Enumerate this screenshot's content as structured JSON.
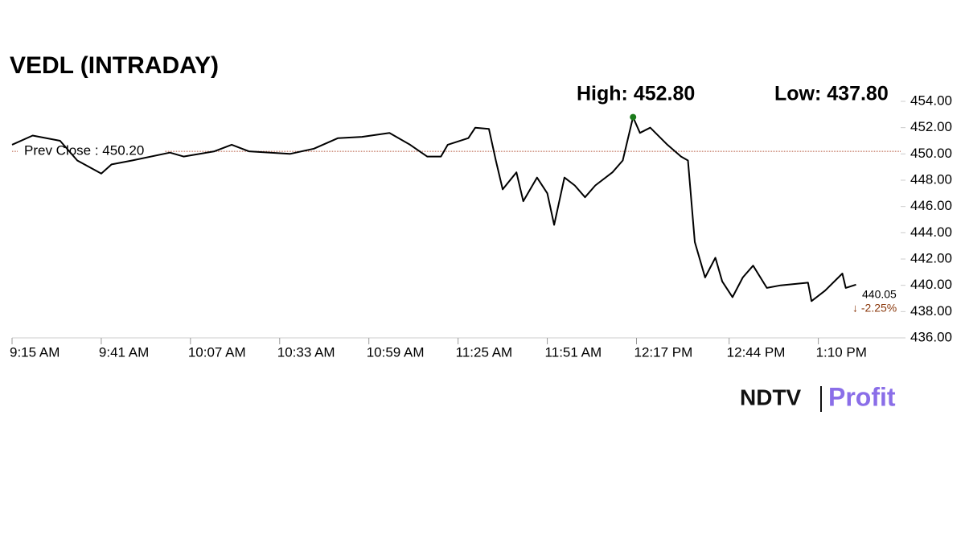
{
  "chart_data": {
    "type": "line",
    "title": "VEDL (INTRADAY)",
    "high_label": "High: 452.80",
    "low_label": "Low: 437.80",
    "prev_close": {
      "value": 450.2,
      "label": "Prev Close : 450.20"
    },
    "last_label": "440.05",
    "change_label": "↓ -2.25%",
    "brand": [
      "NDTV",
      "Profit"
    ],
    "x": [
      "9:15 AM",
      "9:21 AM",
      "9:29 AM",
      "9:34 AM",
      "9:41 AM",
      "9:44 AM",
      "9:50 AM",
      "10:01 AM",
      "10:05 AM",
      "10:14 AM",
      "10:19 AM",
      "10:24 AM",
      "10:36 AM",
      "10:43 AM",
      "10:50 AM",
      "10:57 AM",
      "11:05 AM",
      "11:11 AM",
      "11:16 AM",
      "11:20 AM",
      "11:22 AM",
      "11:28 AM",
      "11:30 AM",
      "11:34 AM",
      "11:36 AM",
      "11:38 AM",
      "11:42 AM",
      "11:44 AM",
      "11:48 AM",
      "11:51 AM",
      "11:53 AM",
      "11:56 AM",
      "11:59 AM",
      "12:02 PM",
      "12:05 PM",
      "12:10 PM",
      "12:13 PM",
      "12:16 PM",
      "12:18 PM",
      "12:21 PM",
      "12:26 PM",
      "12:30 PM",
      "12:32 PM",
      "12:34 PM",
      "12:37 PM",
      "12:40 PM",
      "12:42 PM",
      "12:45 PM",
      "12:48 PM",
      "12:51 PM",
      "12:55 PM",
      "12:59 PM",
      "1:07 PM",
      "1:08 PM",
      "1:12 PM",
      "1:17 PM",
      "1:18 PM",
      "1:21 PM"
    ],
    "series": [
      {
        "name": "VEDL",
        "color": "#000000",
        "values": [
          450.7,
          451.4,
          451.0,
          449.5,
          448.5,
          449.2,
          449.5,
          450.1,
          449.8,
          450.2,
          450.7,
          450.2,
          450.0,
          450.4,
          451.2,
          451.3,
          451.6,
          450.7,
          449.8,
          449.8,
          450.7,
          451.2,
          452.0,
          451.9,
          449.5,
          447.3,
          448.6,
          446.4,
          448.2,
          447.0,
          444.6,
          448.2,
          447.6,
          446.7,
          447.6,
          448.6,
          449.5,
          452.8,
          451.6,
          452.0,
          450.7,
          449.8,
          449.5,
          443.3,
          440.6,
          442.1,
          440.3,
          439.1,
          440.6,
          441.5,
          439.8,
          440.0,
          440.2,
          438.8,
          439.6,
          440.9,
          439.8,
          440.05
        ]
      }
    ],
    "xlim": [
      "9:15 AM",
      "1:34 PM"
    ],
    "xticks": [
      "9:15 AM",
      "9:41 AM",
      "10:07 AM",
      "10:33 AM",
      "10:59 AM",
      "11:25 AM",
      "11:51 AM",
      "12:17 PM",
      "12:44 PM",
      "1:10 PM"
    ],
    "ylim": [
      436,
      454
    ],
    "yticks": [
      {
        "value": 454,
        "label": "454.00"
      },
      {
        "value": 452,
        "label": "452.00"
      },
      {
        "value": 450,
        "label": "450.00"
      },
      {
        "value": 448,
        "label": "448.00"
      },
      {
        "value": 446,
        "label": "446.00"
      },
      {
        "value": 444,
        "label": "444.00"
      },
      {
        "value": 442,
        "label": "442.00"
      },
      {
        "value": 440,
        "label": "440.00"
      },
      {
        "value": 438,
        "label": "438.00"
      },
      {
        "value": 436,
        "label": "436.00"
      }
    ],
    "grid": false
  }
}
